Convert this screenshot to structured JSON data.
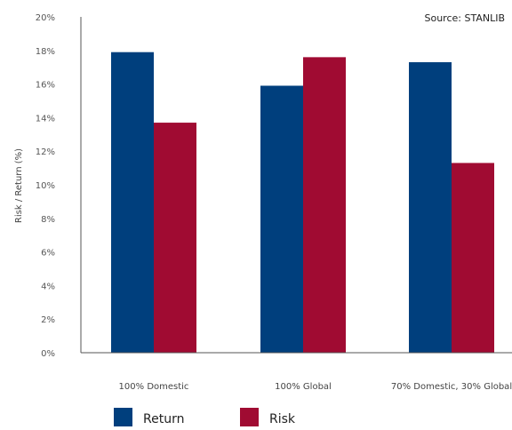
{
  "chart_data": {
    "type": "bar",
    "categories": [
      "100% Domestic",
      "100% Global",
      "70% Domestic, 30% Global"
    ],
    "series": [
      {
        "name": "Return",
        "color": "#003f7d",
        "values": [
          17.9,
          15.9,
          17.3
        ]
      },
      {
        "name": "Risk",
        "color": "#a00b32",
        "values": [
          13.7,
          17.6,
          11.3
        ]
      }
    ],
    "ylabel": "Risk / Return (%)",
    "ylim": [
      0,
      20
    ],
    "yticks": [
      0,
      2,
      4,
      6,
      8,
      10,
      12,
      14,
      16,
      18,
      20
    ],
    "ytick_labels": [
      "0%",
      "2%",
      "4%",
      "6%",
      "8%",
      "10%",
      "12%",
      "14%",
      "16%",
      "18%",
      "20%"
    ],
    "source": "Source: STANLIB",
    "legend_position": "bottom-left",
    "grid": false
  }
}
